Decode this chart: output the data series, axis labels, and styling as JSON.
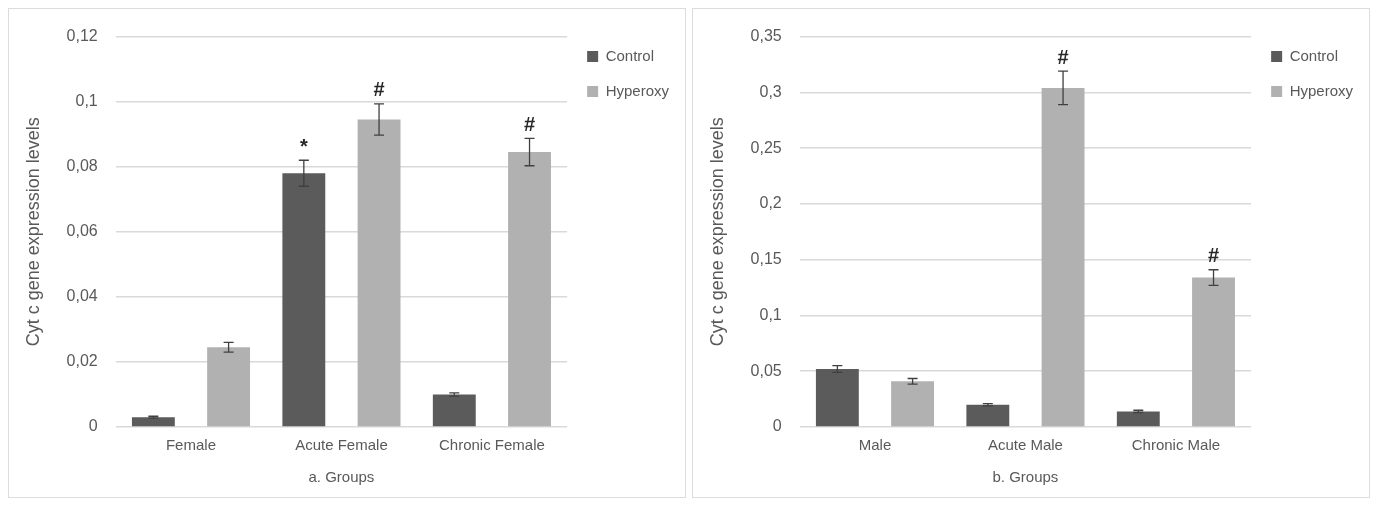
{
  "chart_data": [
    {
      "type": "bar",
      "categories": [
        "Female",
        "Acute Female",
        "Chronic Female"
      ],
      "xlabel": "a. Groups",
      "ylabel": "Cyt c gene expression levels",
      "series": [
        {
          "name": "Control",
          "color": "#5b5b5b",
          "values": [
            0.003,
            0.078,
            0.01
          ],
          "errors": [
            0.0003,
            0.004,
            0.0005
          ]
        },
        {
          "name": "Hyperoxy",
          "color": "#b1b1b1",
          "values": [
            0.0245,
            0.0945,
            0.0845
          ],
          "errors": [
            0.0015,
            0.0048,
            0.0042
          ]
        }
      ],
      "ylim": [
        0,
        0.12
      ],
      "yticks": [
        0,
        {
          "value": 0.02,
          "label": "0,02"
        },
        {
          "value": 0.04,
          "label": "0,04"
        },
        {
          "value": 0.06,
          "label": "0,06"
        },
        {
          "value": 0.08,
          "label": "0,08"
        },
        {
          "value": 0.1,
          "label": "0,1"
        },
        {
          "value": 0.12,
          "label": "0,12"
        }
      ],
      "annotations": [
        "*",
        "#",
        "#"
      ],
      "grid": "y",
      "legend": "top right"
    },
    {
      "type": "bar",
      "categories": [
        "Male",
        "Acute Male",
        "Chronic Male"
      ],
      "xlabel": "b. Groups",
      "ylabel": "Cyt c gene expression levels",
      "series": [
        {
          "name": "Control",
          "color": "#5b5b5b",
          "values": [
            0.052,
            0.02,
            0.014
          ],
          "errors": [
            0.003,
            0.001,
            0.001
          ]
        },
        {
          "name": "Hyperoxy",
          "color": "#b1b1b1",
          "values": [
            0.041,
            0.304,
            0.134
          ],
          "errors": [
            0.0025,
            0.015,
            0.007
          ]
        }
      ],
      "ylim": [
        0,
        0.35
      ],
      "yticks": [
        0,
        {
          "value": 0.05,
          "label": "0,05"
        },
        {
          "value": 0.1,
          "label": "0,1"
        },
        {
          "value": 0.15,
          "label": "0,15"
        },
        {
          "value": 0.2,
          "label": "0,2"
        },
        {
          "value": 0.25,
          "label": "0,25"
        },
        {
          "value": 0.3,
          "label": "0,3"
        },
        {
          "value": 0.35,
          "label": "0,35"
        }
      ],
      "annotations": [
        "#",
        "#"
      ],
      "grid": "y",
      "legend": "top right"
    }
  ]
}
